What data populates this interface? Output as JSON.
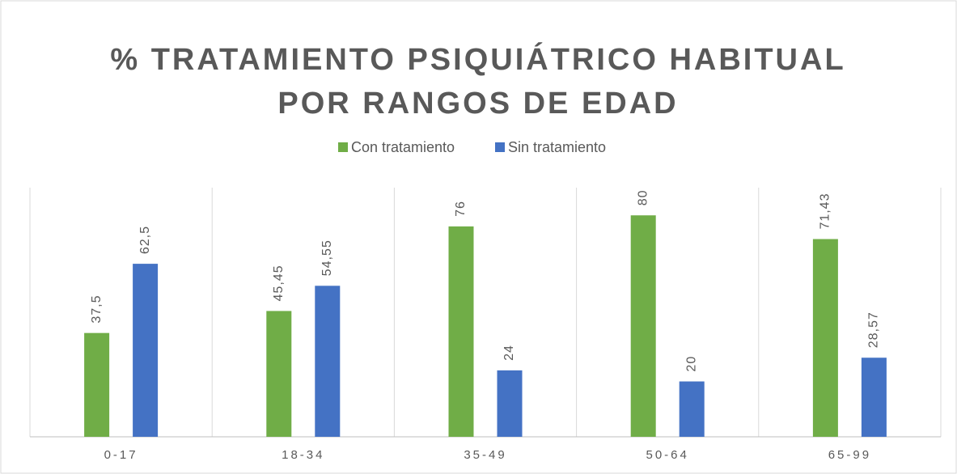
{
  "chart_data": {
    "type": "bar",
    "title": [
      "% TRATAMIENTO PSIQUIÁTRICO HABITUAL",
      "POR RANGOS DE EDAD"
    ],
    "categories": [
      "0-17",
      "18-34",
      "35-49",
      "50-64",
      "65-99"
    ],
    "series": [
      {
        "name": "Con tratamiento",
        "color": "#70ad47",
        "values": [
          37.5,
          45.45,
          76,
          80,
          71.43
        ],
        "value_labels": [
          "37,5",
          "45,45",
          "76",
          "80",
          "71,43"
        ]
      },
      {
        "name": "Sin tratamiento",
        "color": "#4472c4",
        "values": [
          62.5,
          54.55,
          24,
          20,
          28.57
        ],
        "value_labels": [
          "62,5",
          "54,55",
          "24",
          "20",
          "28,57"
        ]
      }
    ],
    "ylim": [
      0,
      90
    ],
    "legend": "top"
  }
}
